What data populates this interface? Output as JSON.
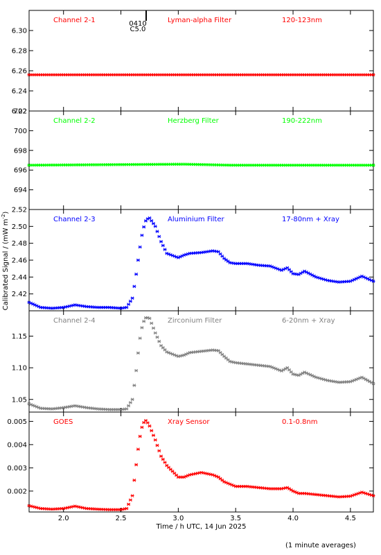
{
  "xaxis": {
    "label": "Time / h UTC, 14 Jun 2025",
    "range": [
      1.7,
      4.7
    ],
    "ticks": [
      2.0,
      2.5,
      3.0,
      3.5,
      4.0,
      4.5
    ],
    "tick_labels": [
      "2.0",
      "2.5",
      "3.0",
      "3.5",
      "4.0",
      "4.5"
    ]
  },
  "yaxis_label": "Calibrated Signal / (mW m",
  "yaxis_label_sup": "-2",
  "yaxis_label_end": ")",
  "footer": "(1 minute averages)",
  "event_marker": {
    "time": "0410",
    "class": "C5.0",
    "x": 2.72
  },
  "colors": {
    "red": "#ff0000",
    "green": "#00ff00",
    "blue": "#0000ff",
    "gray": "#808080",
    "black": "#000000"
  },
  "chart_data": [
    {
      "type": "scatter",
      "channel": "Channel 2-1",
      "filter": "Lyman-alpha Filter",
      "band": "120-123nm",
      "color": "#ff0000",
      "ylim": [
        6.22,
        6.32
      ],
      "yticks": [
        6.22,
        6.24,
        6.26,
        6.28,
        6.3
      ],
      "ytick_labels": [
        "6.22",
        "6.24",
        "6.26",
        "6.28",
        "6.30"
      ],
      "x": [
        1.7,
        4.7
      ],
      "y": [
        6.256,
        6.256
      ]
    },
    {
      "type": "scatter",
      "channel": "Channel 2-2",
      "filter": "Herzberg Filter",
      "band": "190-222nm",
      "color": "#00ff00",
      "ylim": [
        692,
        702
      ],
      "yticks": [
        694,
        696,
        698,
        700,
        702
      ],
      "ytick_labels": [
        "694",
        "696",
        "698",
        "700",
        "702"
      ],
      "x": [
        1.7,
        3.05,
        3.45,
        4.7
      ],
      "y": [
        696.5,
        696.6,
        696.5,
        696.5
      ]
    },
    {
      "type": "scatter",
      "channel": "Channel 2-3",
      "filter": "Aluminium Filter",
      "band": "17-80nm + Xray",
      "color": "#0000ff",
      "ylim": [
        2.4,
        2.52
      ],
      "yticks": [
        2.42,
        2.44,
        2.46,
        2.48,
        2.5,
        2.52
      ],
      "ytick_labels": [
        "2.42",
        "2.44",
        "2.46",
        "2.48",
        "2.50",
        "2.52"
      ],
      "x": [
        1.7,
        1.8,
        1.9,
        2.0,
        2.1,
        2.2,
        2.3,
        2.4,
        2.5,
        2.55,
        2.6,
        2.63,
        2.66,
        2.69,
        2.72,
        2.75,
        2.8,
        2.85,
        2.9,
        3.0,
        3.05,
        3.1,
        3.2,
        3.3,
        3.35,
        3.4,
        3.45,
        3.5,
        3.6,
        3.7,
        3.8,
        3.9,
        3.95,
        4.0,
        4.05,
        4.1,
        4.2,
        4.3,
        4.4,
        4.5,
        4.6,
        4.7
      ],
      "y": [
        2.41,
        2.404,
        2.403,
        2.404,
        2.407,
        2.405,
        2.404,
        2.404,
        2.403,
        2.404,
        2.415,
        2.44,
        2.47,
        2.495,
        2.508,
        2.51,
        2.5,
        2.482,
        2.468,
        2.463,
        2.466,
        2.468,
        2.469,
        2.471,
        2.47,
        2.462,
        2.457,
        2.456,
        2.456,
        2.454,
        2.453,
        2.448,
        2.451,
        2.444,
        2.443,
        2.447,
        2.44,
        2.436,
        2.434,
        2.435,
        2.441,
        2.435
      ]
    },
    {
      "type": "scatter",
      "channel": "Channel 2-4",
      "filter": "Zirconium Filter",
      "band": "6-20nm + Xray",
      "color": "#808080",
      "ylim": [
        1.03,
        1.19
      ],
      "yticks": [
        1.05,
        1.1,
        1.15
      ],
      "ytick_labels": [
        "1.05",
        "1.10",
        "1.15"
      ],
      "x": [
        1.7,
        1.8,
        1.9,
        2.0,
        2.1,
        2.2,
        2.3,
        2.4,
        2.5,
        2.55,
        2.6,
        2.63,
        2.66,
        2.69,
        2.72,
        2.75,
        2.8,
        2.85,
        2.9,
        3.0,
        3.05,
        3.1,
        3.2,
        3.3,
        3.35,
        3.4,
        3.45,
        3.5,
        3.6,
        3.7,
        3.8,
        3.9,
        3.95,
        4.0,
        4.05,
        4.1,
        4.2,
        4.3,
        4.4,
        4.5,
        4.6,
        4.7
      ],
      "y": [
        1.043,
        1.036,
        1.035,
        1.037,
        1.04,
        1.037,
        1.035,
        1.034,
        1.034,
        1.035,
        1.05,
        1.09,
        1.14,
        1.17,
        1.18,
        1.178,
        1.155,
        1.135,
        1.125,
        1.118,
        1.12,
        1.124,
        1.126,
        1.128,
        1.127,
        1.118,
        1.11,
        1.108,
        1.106,
        1.104,
        1.102,
        1.095,
        1.1,
        1.09,
        1.088,
        1.093,
        1.085,
        1.08,
        1.077,
        1.078,
        1.085,
        1.075
      ]
    },
    {
      "type": "scatter",
      "channel": "GOES",
      "filter": "Xray Sensor",
      "band": "0.1-0.8nm",
      "color": "#ff0000",
      "ylim": [
        0.0011,
        0.0054
      ],
      "yticks": [
        0.002,
        0.003,
        0.004,
        0.005
      ],
      "ytick_labels": [
        "0.002",
        "0.003",
        "0.004",
        "0.005"
      ],
      "x": [
        1.7,
        1.8,
        1.9,
        2.0,
        2.1,
        2.2,
        2.3,
        2.4,
        2.5,
        2.55,
        2.6,
        2.63,
        2.66,
        2.69,
        2.72,
        2.75,
        2.8,
        2.85,
        2.9,
        3.0,
        3.05,
        3.1,
        3.2,
        3.3,
        3.35,
        3.4,
        3.45,
        3.5,
        3.6,
        3.7,
        3.8,
        3.9,
        3.95,
        4.0,
        4.05,
        4.1,
        4.2,
        4.3,
        4.4,
        4.5,
        4.6,
        4.7
      ],
      "y": [
        0.00137,
        0.00125,
        0.00122,
        0.00125,
        0.00135,
        0.00125,
        0.00122,
        0.0012,
        0.0012,
        0.00125,
        0.0018,
        0.003,
        0.0042,
        0.0049,
        0.00505,
        0.0048,
        0.0042,
        0.0035,
        0.0031,
        0.0026,
        0.0026,
        0.0027,
        0.0028,
        0.0027,
        0.0026,
        0.0024,
        0.0023,
        0.0022,
        0.0022,
        0.00215,
        0.0021,
        0.0021,
        0.00215,
        0.002,
        0.0019,
        0.0019,
        0.00185,
        0.0018,
        0.00175,
        0.00178,
        0.00195,
        0.0018
      ]
    }
  ]
}
